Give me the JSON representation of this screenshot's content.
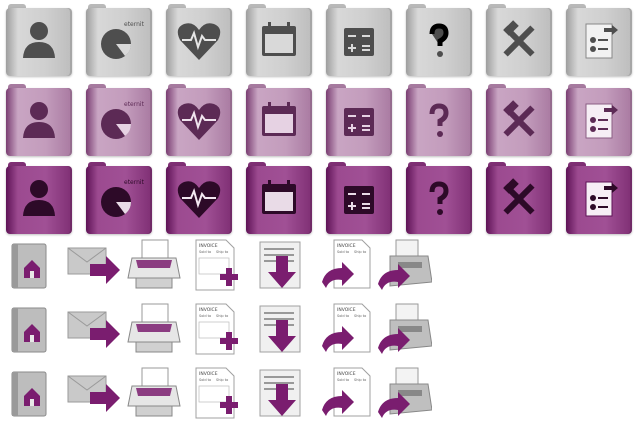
{
  "accent_colors": {
    "gray": "#c8c8c8",
    "lilac": "#c39cbc",
    "purple": "#8e2f82",
    "arrow": "#7a1d6f"
  },
  "folder_rows": [
    {
      "variant": "gray",
      "icons": [
        "user-icon",
        "pie-chart-icon",
        "heart-pulse-icon",
        "calendar-icon",
        "calculator-icon",
        "help-icon",
        "tools-icon",
        "document-user-icon"
      ]
    },
    {
      "variant": "light-purple",
      "icons": [
        "user-icon",
        "pie-chart-icon",
        "heart-pulse-icon",
        "calendar-icon",
        "calculator-icon",
        "help-icon",
        "tools-icon",
        "document-user-icon"
      ]
    },
    {
      "variant": "dark-purple",
      "icons": [
        "user-icon",
        "pie-chart-icon",
        "heart-pulse-icon",
        "calendar-icon",
        "calculator-icon",
        "help-icon",
        "tools-icon",
        "document-user-icon"
      ]
    }
  ],
  "pie_label": "eternity",
  "invoice_header": "INVOICE",
  "invoice_fields": [
    "Sold to",
    "Ship to"
  ],
  "action_rows": 3,
  "action_icons": [
    "home-icon",
    "mail-forward-icon",
    "printer-icon",
    "invoice-add-icon",
    "download-doc-icon",
    "invoice-send-icon",
    "fax-send-icon"
  ]
}
